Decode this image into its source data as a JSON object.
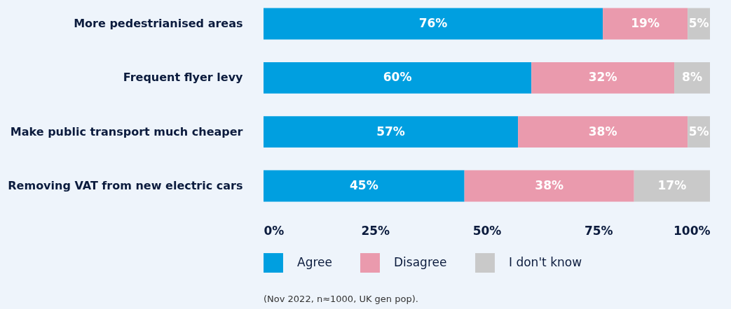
{
  "chart_data": {
    "type": "bar",
    "orientation": "horizontal",
    "stacked": true,
    "categories": [
      "More pedestrianised areas",
      "Frequent flyer levy",
      "Make public transport much cheaper",
      "Removing VAT from new electric cars"
    ],
    "series": [
      {
        "name": "Agree",
        "color": "#009fe0",
        "values": [
          76,
          60,
          57,
          45
        ],
        "value_labels": [
          "76%",
          "60%",
          "57%",
          "45%"
        ]
      },
      {
        "name": "Disagree",
        "color": "#ea9aad",
        "values": [
          19,
          32,
          38,
          38
        ],
        "value_labels": [
          "19%",
          "32%",
          "38%",
          "38%"
        ]
      },
      {
        "name": "I don't know",
        "color": "#c9c9c9",
        "values": [
          5,
          8,
          5,
          17
        ],
        "value_labels": [
          "5%",
          "8%",
          "5%",
          "17%"
        ]
      }
    ],
    "xlim": [
      0,
      100
    ],
    "xticks": [
      {
        "value": 0,
        "label": "0%"
      },
      {
        "value": 25,
        "label": "25%"
      },
      {
        "value": 50,
        "label": "50%"
      },
      {
        "value": 75,
        "label": "75%"
      },
      {
        "value": 100,
        "label": "100%"
      }
    ],
    "grid": false,
    "legend": "bottom",
    "annotations": [
      "(Nov 2022, n≈1000, UK gen pop)."
    ]
  }
}
